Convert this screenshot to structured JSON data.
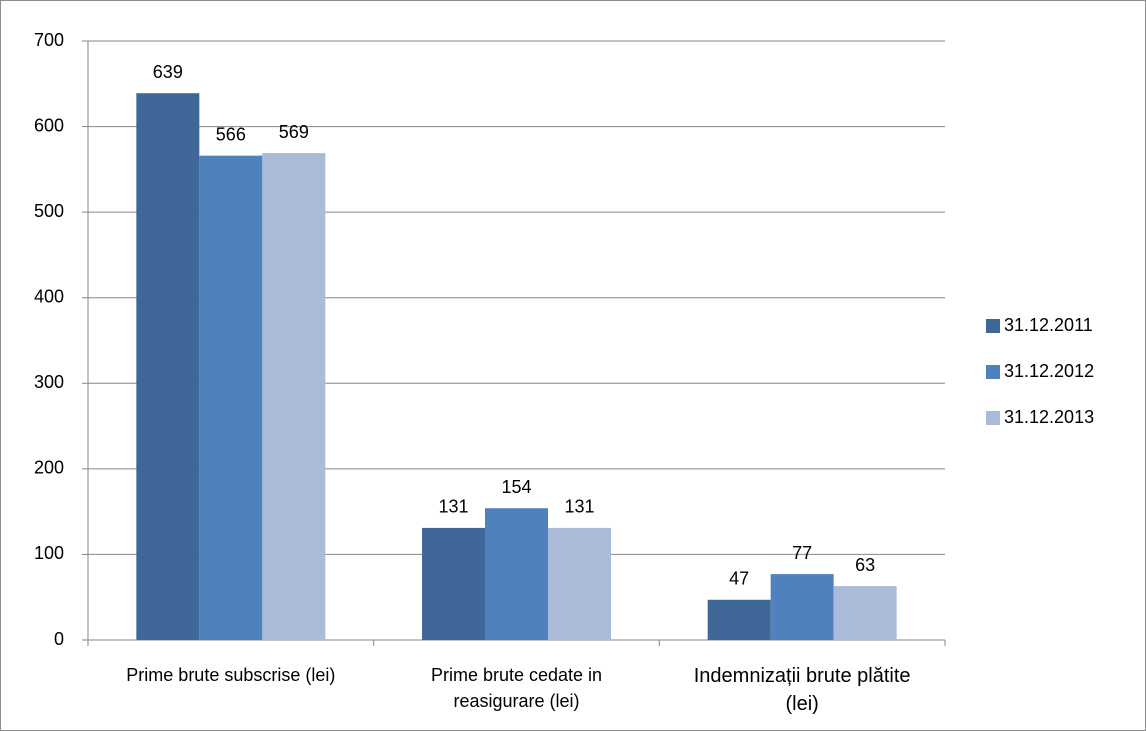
{
  "chart_data": {
    "type": "bar",
    "categories": [
      "Prime brute subscrise (lei)",
      "Prime brute cedate in reasigurare (lei)",
      "Indemnizații brute plătite (lei)"
    ],
    "series": [
      {
        "name": "31.12.2011",
        "color": "#3f6797",
        "values": [
          639,
          131,
          47
        ]
      },
      {
        "name": "31.12.2012",
        "color": "#4f81bd",
        "values": [
          566,
          154,
          77
        ]
      },
      {
        "name": "31.12.2013",
        "color": "#a9bbd9",
        "values": [
          569,
          131,
          63
        ]
      }
    ],
    "ylim": [
      0,
      700
    ],
    "yticks": [
      0,
      100,
      200,
      300,
      400,
      500,
      600,
      700
    ],
    "grid": true,
    "legend": "right"
  }
}
